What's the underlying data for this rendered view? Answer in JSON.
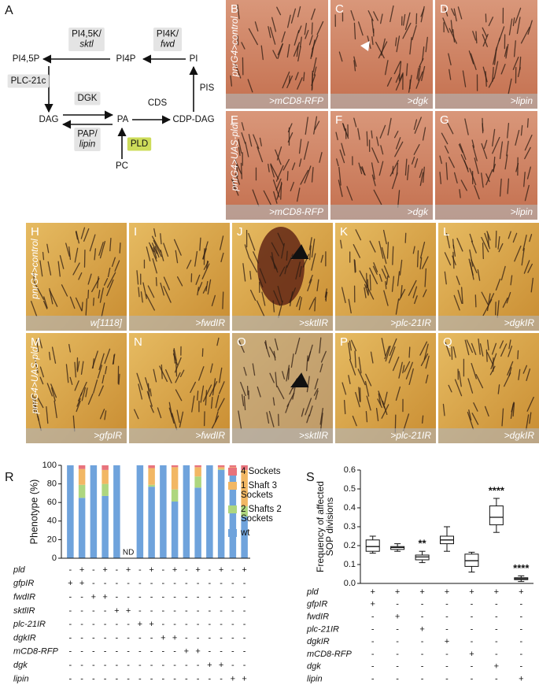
{
  "pathway": {
    "letter": "A",
    "metabolites": [
      "PI4,5P",
      "PI4P",
      "PI",
      "DAG",
      "PA",
      "CDP-DAG",
      "PC"
    ],
    "enzymes": [
      {
        "lines": [
          "PI4,5K/",
          "sktl"
        ]
      },
      {
        "lines": [
          "PI4K/",
          "fwd"
        ]
      },
      {
        "lines": [
          "PLC-21c"
        ]
      },
      {
        "lines": [
          "DGK"
        ]
      },
      {
        "lines": [
          "PAP/",
          "lipin"
        ]
      },
      {
        "lines": [
          "CDS"
        ]
      },
      {
        "lines": [
          "PIS"
        ]
      },
      {
        "lines": [
          "PLD"
        ]
      }
    ]
  },
  "photo_rows": [
    {
      "label": "pnrG4>control",
      "panels": [
        {
          "letter": "B",
          "caption": ">mCD8-RFP"
        },
        {
          "letter": "C",
          "caption": ">dgk"
        },
        {
          "letter": "D",
          "caption": ">lipin"
        }
      ]
    },
    {
      "label": "pnrG4>UAS-pld",
      "panels": [
        {
          "letter": "E",
          "caption": ">mCD8-RFP"
        },
        {
          "letter": "F",
          "caption": ">dgk"
        },
        {
          "letter": "G",
          "caption": ">lipin"
        }
      ]
    },
    {
      "label": "pnrG4>control",
      "panels": [
        {
          "letter": "H",
          "caption": "w[1118]"
        },
        {
          "letter": "I",
          "caption": ">fwdIR"
        },
        {
          "letter": "J",
          "caption": ">sktlIR"
        },
        {
          "letter": "K",
          "caption": ">plc-21IR"
        },
        {
          "letter": "L",
          "caption": ">dgkIR"
        }
      ]
    },
    {
      "label": "pnrG4>UAS-pld",
      "panels": [
        {
          "letter": "M",
          "caption": ">gfpIR"
        },
        {
          "letter": "N",
          "caption": ">fwdIR"
        },
        {
          "letter": "O",
          "caption": ">sktlIR"
        },
        {
          "letter": "P",
          "caption": ">plc-21IR"
        },
        {
          "letter": "Q",
          "caption": ">dgkIR"
        }
      ]
    }
  ],
  "chart_data": [
    {
      "type": "bar",
      "stacked": true,
      "panel_label": "R",
      "ylabel": "Phenotype (%)",
      "ylim": [
        0,
        100
      ],
      "yticks": [
        0,
        20,
        40,
        60,
        80,
        100
      ],
      "annotation": "ND",
      "series": [
        {
          "name": "4 Sockets",
          "color": "#e8737c",
          "values": [
            0,
            4,
            0,
            5,
            0,
            null,
            0,
            3,
            0,
            2,
            0,
            2,
            0,
            2,
            2,
            5
          ]
        },
        {
          "name": "1 Shaft 3 Sockets",
          "color": "#f2b764",
          "values": [
            0,
            17,
            0,
            15,
            0,
            null,
            0,
            18,
            0,
            24,
            0,
            10,
            0,
            2,
            2,
            39
          ]
        },
        {
          "name": "2 Shafts 2 Sockets",
          "color": "#aed67f",
          "values": [
            0,
            14,
            0,
            13,
            0,
            null,
            0,
            2,
            0,
            13,
            0,
            12,
            0,
            1,
            0,
            11
          ]
        },
        {
          "name": "wt",
          "color": "#6fa3dc",
          "values": [
            100,
            65,
            100,
            67,
            100,
            null,
            100,
            77,
            100,
            61,
            100,
            76,
            100,
            95,
            96,
            45
          ]
        }
      ],
      "genotypes": [
        {
          "label": "pld",
          "signs": [
            "-",
            "+",
            "-",
            "+",
            "-",
            "+",
            "-",
            "+",
            "-",
            "+",
            "-",
            "+",
            "-",
            "+",
            "-",
            "+"
          ]
        },
        {
          "label": "gfpIR",
          "signs": [
            "+",
            "+",
            "-",
            "-",
            "-",
            "-",
            "-",
            "-",
            "-",
            "-",
            "-",
            "-",
            "-",
            "-",
            "-",
            "-"
          ]
        },
        {
          "label": "fwdIR",
          "signs": [
            "-",
            "-",
            "+",
            "+",
            "-",
            "-",
            "-",
            "-",
            "-",
            "-",
            "-",
            "-",
            "-",
            "-",
            "-",
            "-"
          ]
        },
        {
          "label": "sktlIR",
          "signs": [
            "-",
            "-",
            "-",
            "-",
            "+",
            "+",
            "-",
            "-",
            "-",
            "-",
            "-",
            "-",
            "-",
            "-",
            "-",
            "-"
          ]
        },
        {
          "label": "plc-21IR",
          "signs": [
            "-",
            "-",
            "-",
            "-",
            "-",
            "-",
            "+",
            "+",
            "-",
            "-",
            "-",
            "-",
            "-",
            "-",
            "-",
            "-"
          ]
        },
        {
          "label": "dgkIR",
          "signs": [
            "-",
            "-",
            "-",
            "-",
            "-",
            "-",
            "-",
            "-",
            "+",
            "+",
            "-",
            "-",
            "-",
            "-",
            "-",
            "-"
          ]
        },
        {
          "label": "mCD8-RFP",
          "signs": [
            "-",
            "-",
            "-",
            "-",
            "-",
            "-",
            "-",
            "-",
            "-",
            "-",
            "+",
            "+",
            "-",
            "-",
            "-",
            "-"
          ]
        },
        {
          "label": "dgk",
          "signs": [
            "-",
            "-",
            "-",
            "-",
            "-",
            "-",
            "-",
            "-",
            "-",
            "-",
            "-",
            "-",
            "+",
            "+",
            "-",
            "-"
          ]
        },
        {
          "label": "lipin",
          "signs": [
            "-",
            "-",
            "-",
            "-",
            "-",
            "-",
            "-",
            "-",
            "-",
            "-",
            "-",
            "-",
            "-",
            "-",
            "+",
            "+"
          ]
        }
      ]
    },
    {
      "type": "box",
      "panel_label": "S",
      "ylabel": "Frequency of affected SOP divisions",
      "ylim": [
        0,
        0.6
      ],
      "yticks": [
        {
          "value": 0,
          "label": "0.0"
        },
        0.1,
        0.2,
        0.3,
        0.4,
        0.5,
        0.6
      ],
      "boxes": [
        {
          "min": 0.16,
          "q1": 0.17,
          "median": 0.195,
          "q3": 0.23,
          "max": 0.25
        },
        {
          "min": 0.17,
          "q1": 0.18,
          "median": 0.19,
          "q3": 0.195,
          "max": 0.21
        },
        {
          "min": 0.11,
          "q1": 0.125,
          "median": 0.14,
          "q3": 0.15,
          "max": 0.17
        },
        {
          "min": 0.17,
          "q1": 0.21,
          "median": 0.23,
          "q3": 0.25,
          "max": 0.3
        },
        {
          "min": 0.06,
          "q1": 0.09,
          "median": 0.12,
          "q3": 0.155,
          "max": 0.165
        },
        {
          "min": 0.27,
          "q1": 0.31,
          "median": 0.35,
          "q3": 0.41,
          "max": 0.45
        },
        {
          "min": 0.01,
          "q1": 0.02,
          "median": 0.025,
          "q3": 0.03,
          "max": 0.04
        }
      ],
      "significance": [
        null,
        null,
        "**",
        null,
        null,
        "****",
        "****"
      ],
      "genotypes": [
        {
          "label": "pld",
          "signs": [
            "+",
            "+",
            "+",
            "+",
            "+",
            "+",
            "+"
          ]
        },
        {
          "label": "gfpIR",
          "signs": [
            "+",
            "-",
            "-",
            "-",
            "-",
            "-",
            "-"
          ]
        },
        {
          "label": "fwdIR",
          "signs": [
            "-",
            "+",
            "-",
            "-",
            "-",
            "-",
            "-"
          ]
        },
        {
          "label": "plc-21IR",
          "signs": [
            "-",
            "-",
            "+",
            "-",
            "-",
            "-",
            "-"
          ]
        },
        {
          "label": "dgkIR",
          "signs": [
            "-",
            "-",
            "-",
            "+",
            "-",
            "-",
            "-"
          ]
        },
        {
          "label": "mCD8-RFP",
          "signs": [
            "-",
            "-",
            "-",
            "-",
            "+",
            "-",
            "-"
          ]
        },
        {
          "label": "dgk",
          "signs": [
            "-",
            "-",
            "-",
            "-",
            "-",
            "+",
            "-"
          ]
        },
        {
          "label": "lipin",
          "signs": [
            "-",
            "-",
            "-",
            "-",
            "-",
            "-",
            "+"
          ]
        }
      ]
    }
  ]
}
